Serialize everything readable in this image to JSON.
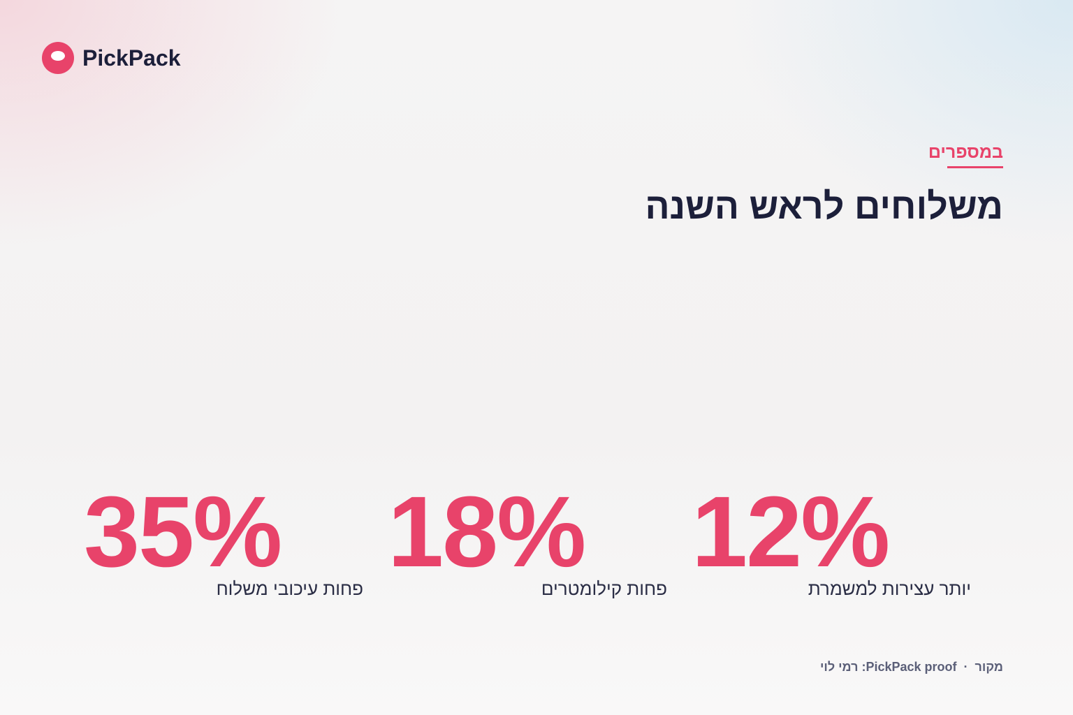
{
  "header": {
    "brand": "PickPack"
  },
  "eyebrow": "במספרים",
  "title": "משלוחים לראש השנה",
  "stats": [
    {
      "value": "12%",
      "label": "יותר עצירות למשמרת"
    },
    {
      "value": "18%",
      "label": "פחות קילומטרים"
    },
    {
      "value": "35%",
      "label": "פחות עיכובי משלוח"
    }
  ],
  "footer": {
    "source_label": "מקור",
    "separator": "·",
    "source": "PickPack proof: רמי לוי"
  }
}
